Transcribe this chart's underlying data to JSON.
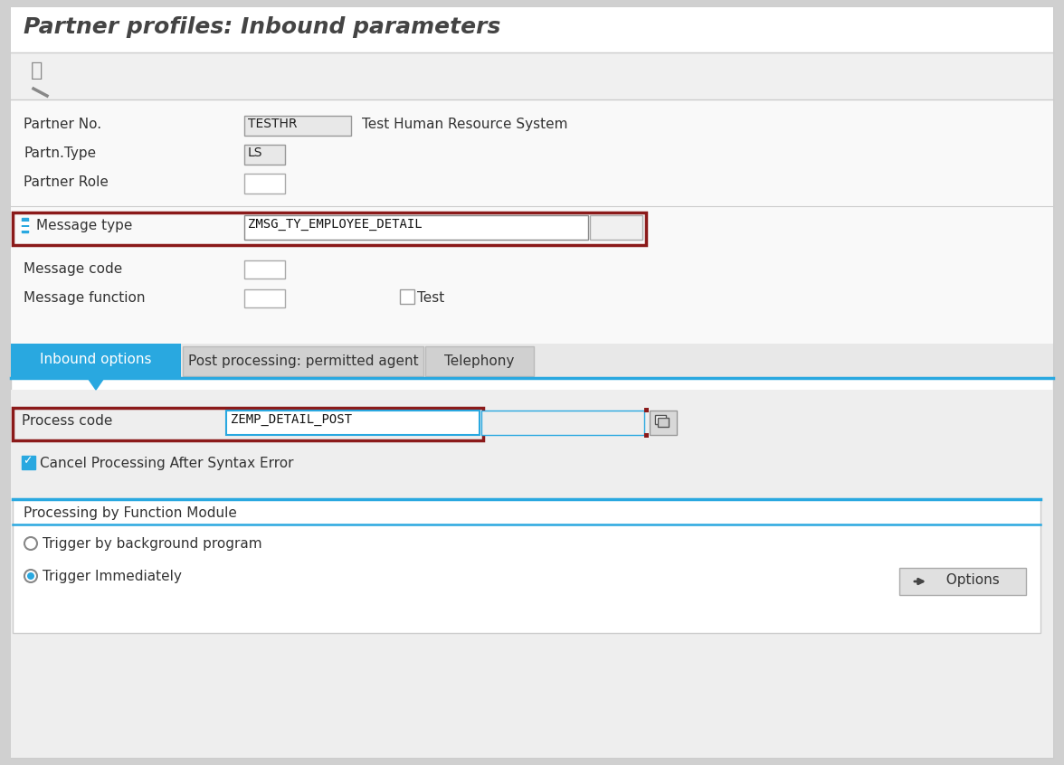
{
  "title": "Partner profiles: Inbound parameters",
  "bg_outer": "#d0d0d0",
  "bg_white": "#ffffff",
  "bg_form": "#f7f7f7",
  "bg_toolbar": "#f2f2f2",
  "bg_title": "#ffffff",
  "bg_tab_active": "#29a8e0",
  "bg_tab_inactive": "#d8d8d8",
  "bg_panel": "#ececec",
  "bg_section": "#ffffff",
  "mid_gray": "#cccccc",
  "dark_gray": "#888888",
  "text_dark": "#333333",
  "text_black": "#111111",
  "dark_red": "#8b1a1a",
  "blue": "#29a8e0",
  "input_bg": "#e8e8e8",
  "partner_no_label": "Partner No.",
  "partner_no_value": "TESTHR",
  "partner_no_desc": "Test Human Resource System",
  "partn_type_label": "Partn.Type",
  "partn_type_value": "LS",
  "partner_role_label": "Partner Role",
  "message_type_label": "Message type",
  "message_type_value": "ZMSG_TY_EMPLOYEE_DETAIL",
  "message_code_label": "Message code",
  "message_function_label": "Message function",
  "test_label": "Test",
  "tab1": "Inbound options",
  "tab2": "Post processing: permitted agent",
  "tab3": "Telephony",
  "process_code_label": "Process code",
  "process_code_value": "ZEMP_DETAIL_POST",
  "cancel_processing_label": "Cancel Processing After Syntax Error",
  "processing_section_label": "Processing by Function Module",
  "radio1_label": "Trigger by background program",
  "radio2_label": "Trigger Immediately",
  "options_btn": "  Options"
}
